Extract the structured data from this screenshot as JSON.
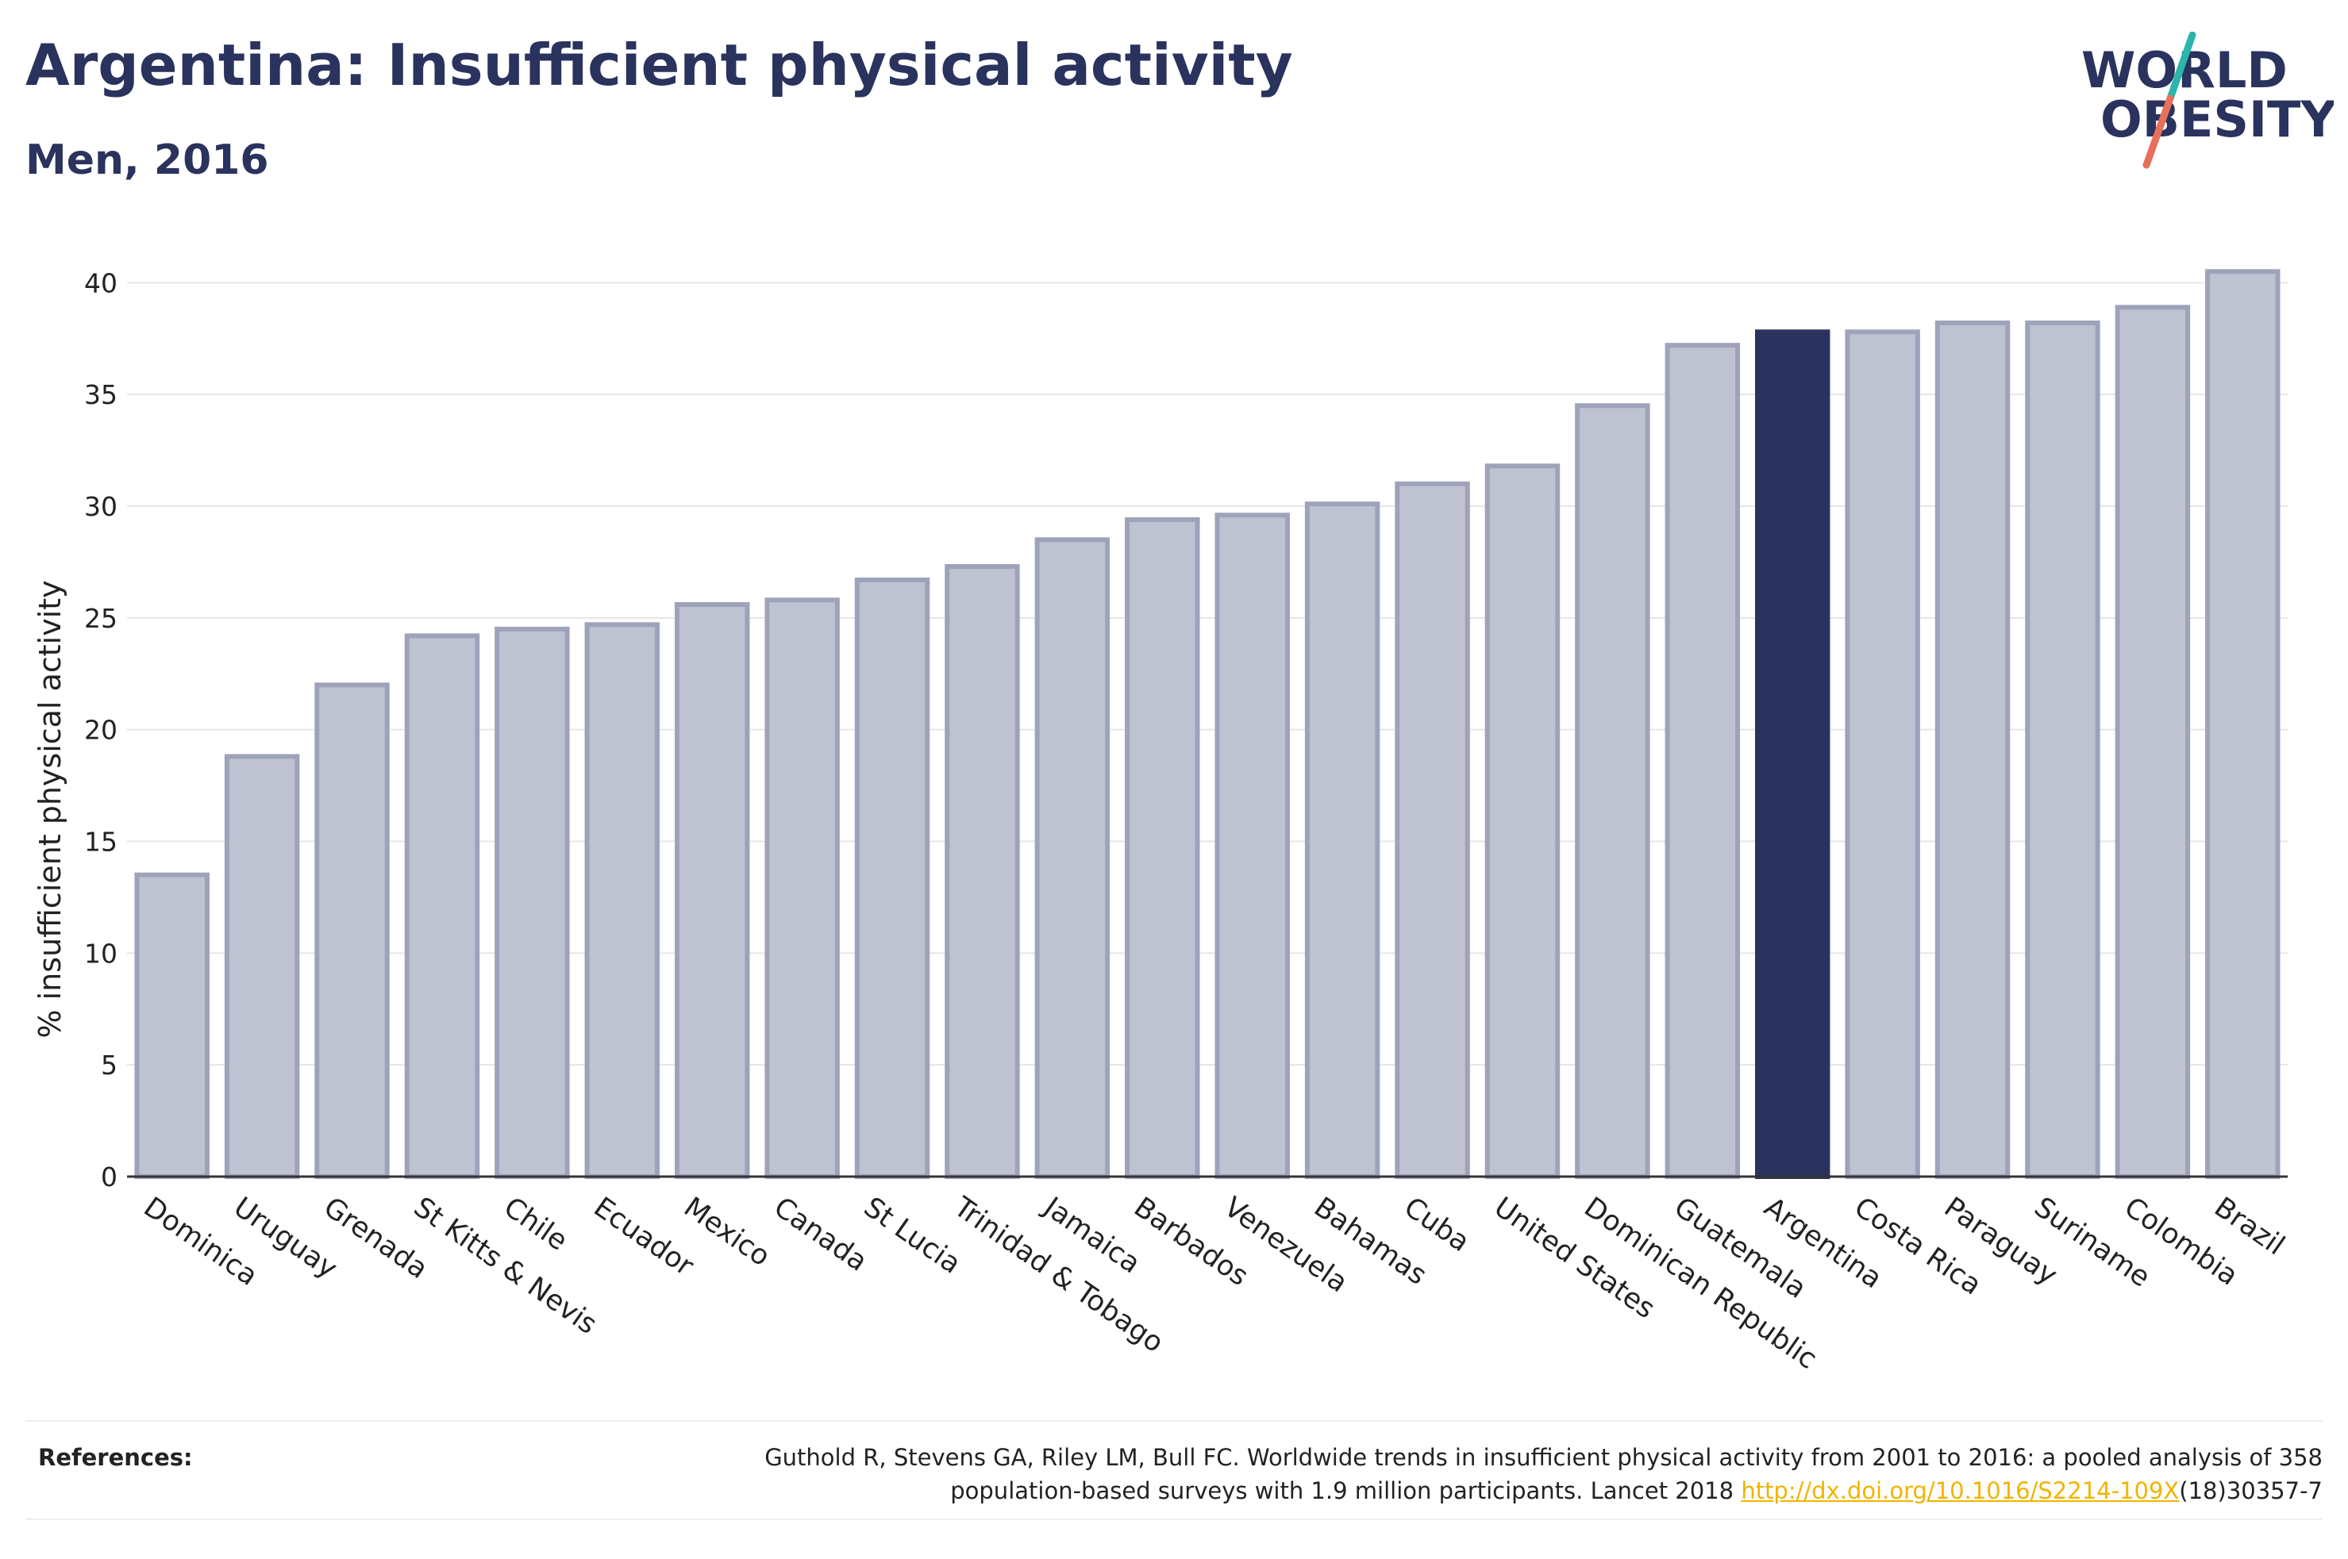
{
  "header": {
    "title": "Argentina: Insufficient physical activity",
    "subtitle": "Men, 2016"
  },
  "logo": {
    "line1": "WORLD",
    "line2": "OBESITY",
    "text_color": "#2a335d",
    "accent_teal": "#2bb5ac",
    "accent_coral": "#e8705a"
  },
  "chart_data": {
    "type": "bar",
    "title": "Argentina: Insufficient physical activity",
    "subtitle": "Men, 2016",
    "xlabel": "",
    "ylabel": "% insufficient physical activity",
    "ylim": [
      0,
      42
    ],
    "yticks": [
      0,
      5,
      10,
      15,
      20,
      25,
      30,
      35,
      40
    ],
    "grid": true,
    "categories": [
      "Dominica",
      "Uruguay",
      "Grenada",
      "St Kitts & Nevis",
      "Chile",
      "Ecuador",
      "Mexico",
      "Canada",
      "St Lucia",
      "Trinidad & Tobago",
      "Jamaica",
      "Barbados",
      "Venezuela",
      "Bahamas",
      "Cuba",
      "United States",
      "Dominican Republic",
      "Guatemala",
      "Argentina",
      "Costa Rica",
      "Paraguay",
      "Suriname",
      "Colombia",
      "Brazil"
    ],
    "values": [
      13.5,
      18.8,
      22.0,
      24.2,
      24.5,
      24.7,
      25.6,
      25.8,
      26.7,
      27.3,
      28.5,
      29.4,
      29.6,
      30.1,
      31.0,
      31.8,
      34.5,
      37.2,
      37.8,
      37.8,
      38.2,
      38.2,
      38.9,
      40.5
    ],
    "highlight": "Argentina",
    "colors": {
      "bar": "#bfc2d0",
      "bar_edge": "#9ea3bb",
      "highlight": "#2a335d",
      "grid": "#e6e6e6",
      "axis": "#333333"
    }
  },
  "references": {
    "label": "References:",
    "text_line1": "Guthold R, Stevens GA, Riley LM, Bull FC. Worldwide trends in insufficient physical activity from 2001 to 2016: a pooled analysis of 358",
    "text_line2_prefix": "population-based surveys with 1.9 million participants. Lancet 2018 ",
    "link": "http://dx.doi.org/10.1016/S2214-109X",
    "text_line2_suffix": "(18)30357-7"
  }
}
